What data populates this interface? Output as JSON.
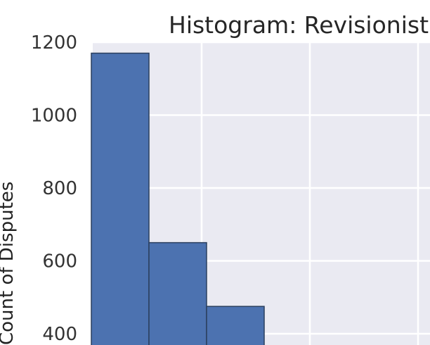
{
  "chart_data": {
    "type": "bar",
    "title": "Histogram: Revisionist",
    "xlabel": "",
    "ylabel": "Count of Disputes",
    "yticks": [
      "400",
      "600",
      "800",
      "1000",
      "1200"
    ],
    "bins": [
      {
        "value": 1170
      },
      {
        "value": 650
      },
      {
        "value": 475
      }
    ],
    "ylim_visible": [
      390,
      1200
    ],
    "grid": true,
    "colors": {
      "background": "#EAEAF2",
      "bar": "#4C72B0",
      "bar_edge": "#2B3F5E",
      "grid": "#FFFFFF"
    }
  }
}
